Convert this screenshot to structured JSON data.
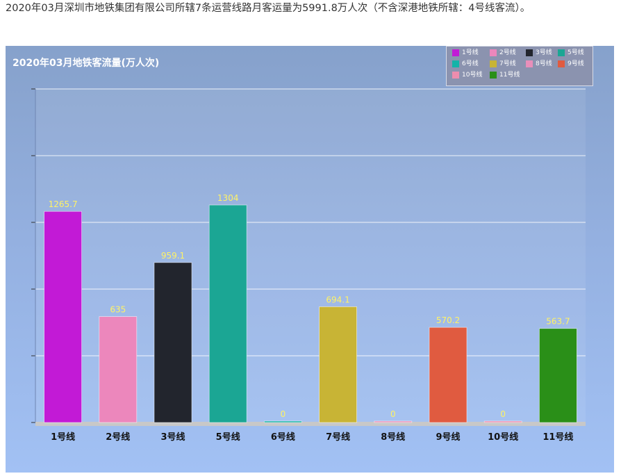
{
  "headline": "2020年03月深圳市地铁集团有限公司所辖7条运营线路月客运量为5991.8万人次（不含深港地铁所辖：4号线客流）。",
  "chart_data": {
    "type": "bar",
    "title": "2020年03月地铁客流量(万人次)",
    "categories": [
      "1号线",
      "2号线",
      "3号线",
      "5号线",
      "6号线",
      "7号线",
      "8号线",
      "9号线",
      "10号线",
      "11号线"
    ],
    "values": [
      1265.7,
      635,
      959.1,
      1304,
      0,
      694.1,
      0,
      570.2,
      0,
      563.7
    ],
    "colors": [
      "#c21ad6",
      "#ec87bc",
      "#22252d",
      "#1ba694",
      "#13b3a8",
      "#c8b435",
      "#e88fba",
      "#e05b40",
      "#ed8dae",
      "#2a8f18"
    ],
    "legend": {
      "position": "top-right",
      "entries": [
        "1号线",
        "2号线",
        "3号线",
        "5号线",
        "6号线",
        "7号线",
        "8号线",
        "9号线",
        "10号线",
        "11号线"
      ]
    },
    "ylim": [
      0,
      2000
    ],
    "grid": true,
    "data_label_color": "#fff266",
    "xlabel": "",
    "ylabel": ""
  }
}
